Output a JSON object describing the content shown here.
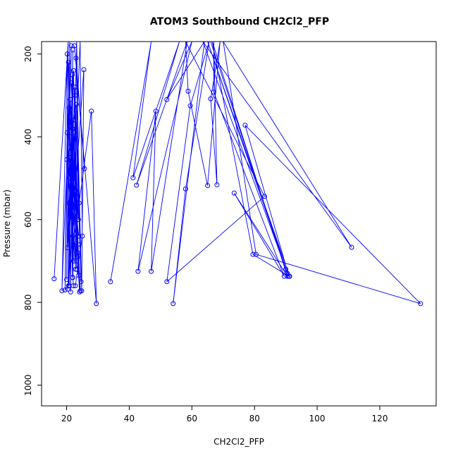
{
  "chart_data": {
    "type": "line",
    "title": "ATOM3 Southbound CH2Cl2_PFP",
    "xlabel": "CH2Cl2_PFP",
    "ylabel": "Pressure (mbar)",
    "xlim": [
      12,
      138
    ],
    "ylim": [
      1050,
      170
    ],
    "y_reversed": true,
    "x_ticks": [
      20,
      40,
      60,
      80,
      100,
      120
    ],
    "y_ticks": [
      200,
      400,
      600,
      800,
      1000
    ],
    "grid": false,
    "legend": "none",
    "colors": {
      "series": "#0000ff",
      "axes": "#000000"
    },
    "series": [
      {
        "markers": "open-circle",
        "points": [
          [
            16.0,
            743
          ],
          [
            20.5,
            170
          ],
          [
            19.5,
            770
          ],
          [
            21.0,
            170
          ],
          [
            20.0,
            745
          ],
          [
            21.5,
            180
          ],
          [
            18.5,
            772
          ],
          [
            20.2,
            200
          ],
          [
            20.8,
            760
          ],
          [
            22.0,
            190
          ],
          [
            21.3,
            775
          ],
          [
            20.6,
            220
          ],
          [
            22.0,
            740
          ],
          [
            21.8,
            250
          ],
          [
            20.4,
            768
          ],
          [
            22.6,
            280
          ],
          [
            23.2,
            700
          ],
          [
            21.2,
            310
          ],
          [
            22.0,
            640
          ],
          [
            20.8,
            330
          ],
          [
            23.0,
            540
          ],
          [
            22.0,
            360
          ],
          [
            21.0,
            500
          ],
          [
            22.6,
            390
          ],
          [
            23.8,
            600
          ],
          [
            21.6,
            420
          ],
          [
            22.2,
            700
          ],
          [
            20.9,
            450
          ],
          [
            23.4,
            560
          ],
          [
            22.3,
            470
          ],
          [
            20.3,
            668
          ],
          [
            21.1,
            500
          ],
          [
            21.9,
            740
          ],
          [
            22.8,
            530
          ],
          [
            24.4,
            772
          ],
          [
            20.7,
            560
          ],
          [
            23.6,
            660
          ],
          [
            21.7,
            520
          ],
          [
            22.1,
            760
          ],
          [
            21.4,
            480
          ],
          [
            23.9,
            640
          ],
          [
            20.1,
            455
          ],
          [
            22.9,
            720
          ],
          [
            21.6,
            430
          ],
          [
            24.1,
            775
          ],
          [
            22.4,
            400
          ],
          [
            20.2,
            390
          ],
          [
            23.3,
            720
          ],
          [
            21.8,
            380
          ],
          [
            23.1,
            322
          ],
          [
            24.6,
            750
          ],
          [
            22.7,
            300
          ],
          [
            23.5,
            680
          ],
          [
            21.5,
            270
          ],
          [
            23.9,
            735
          ],
          [
            22.2,
            240
          ],
          [
            20.6,
            760
          ],
          [
            25.5,
            238
          ],
          [
            24.8,
            772
          ],
          [
            23.0,
            210
          ],
          [
            25.7,
            477
          ],
          [
            22.5,
            180
          ],
          [
            29.5,
            803
          ],
          [
            27.9,
            338
          ],
          [
            24.0,
            560
          ],
          [
            23.2,
            170
          ],
          [
            22.0,
            580
          ],
          [
            24.3,
            170
          ],
          [
            25.0,
            640
          ],
          [
            22.8,
            760
          ]
        ],
        "points_right_cluster": [
          [
            34.0,
            750
          ],
          [
            47.0,
            170
          ],
          [
            41.2,
            499
          ],
          [
            56.0,
            170
          ],
          [
            42.3,
            517
          ],
          [
            58.5,
            170
          ],
          [
            47.0,
            725
          ],
          [
            48.5,
            338
          ],
          [
            42.8,
            725
          ],
          [
            60.0,
            170
          ],
          [
            52.0,
            310
          ],
          [
            64.0,
            170
          ],
          [
            54.0,
            803
          ],
          [
            58.0,
            526
          ],
          [
            65.5,
            170
          ],
          [
            59.5,
            325
          ],
          [
            52.0,
            750
          ],
          [
            83.2,
            544
          ],
          [
            58.0,
            170
          ],
          [
            58.8,
            290
          ],
          [
            65.0,
            518
          ],
          [
            69.0,
            170
          ],
          [
            66.0,
            308
          ],
          [
            68.0,
            516
          ],
          [
            67.0,
            170
          ],
          [
            67.0,
            292
          ],
          [
            89.5,
            737
          ],
          [
            73.5,
            536
          ],
          [
            90.5,
            737
          ],
          [
            66.5,
            170
          ],
          [
            79.5,
            684
          ],
          [
            91.0,
            737
          ],
          [
            77.0,
            372
          ],
          [
            133.0,
            803
          ],
          [
            80.5,
            684
          ],
          [
            70.0,
            170
          ],
          [
            111.0,
            667
          ],
          [
            63.5,
            170
          ],
          [
            90.5,
            730
          ],
          [
            66.0,
            170
          ],
          [
            90.0,
            720
          ],
          [
            65.0,
            170
          ],
          [
            91.2,
            737
          ]
        ]
      }
    ]
  }
}
